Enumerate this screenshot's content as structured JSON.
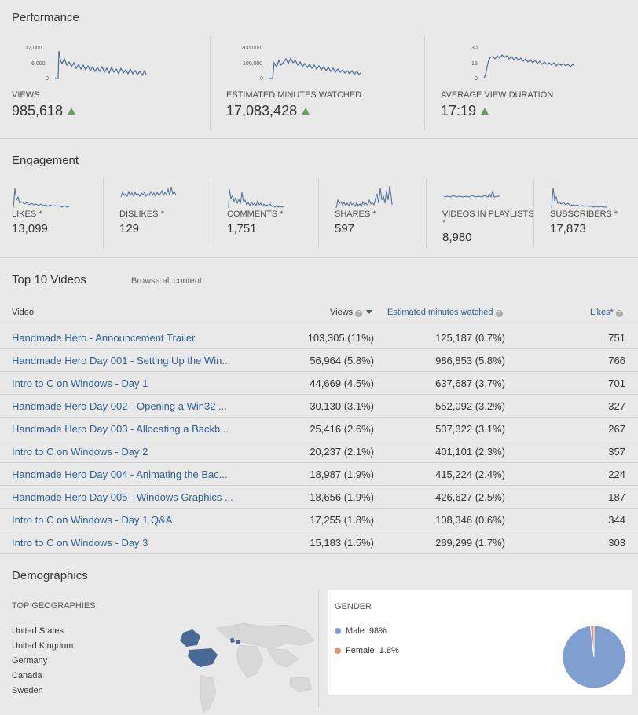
{
  "performance": {
    "title": "Performance",
    "metrics": [
      {
        "label": "VIEWS",
        "value": "985,618",
        "ticks": [
          "12,000",
          "6,000",
          "0"
        ]
      },
      {
        "label": "ESTIMATED MINUTES WATCHED",
        "value": "17,083,428",
        "ticks": [
          "200,000",
          "100,000",
          "0"
        ]
      },
      {
        "label": "AVERAGE VIEW DURATION",
        "value": "17:19",
        "ticks": [
          "30",
          "15",
          "0"
        ]
      }
    ],
    "trend_color": "#6a9c62"
  },
  "engagement": {
    "title": "Engagement",
    "metrics": [
      {
        "label": "LIKES *",
        "value": "13,099"
      },
      {
        "label": "DISLIKES *",
        "value": "129"
      },
      {
        "label": "COMMENTS *",
        "value": "1,751"
      },
      {
        "label": "SHARES *",
        "value": "597"
      },
      {
        "label": "VIDEOS IN PLAYLISTS",
        "label2": "*",
        "value": "8,980"
      },
      {
        "label": "SUBSCRIBERS *",
        "value": "17,873"
      }
    ]
  },
  "top_videos": {
    "title": "Top 10 Videos",
    "browse_link": "Browse all content",
    "columns": {
      "video": "Video",
      "views": "Views",
      "minutes": "Estimated minutes watched",
      "likes": "Likes*"
    },
    "rows": [
      {
        "title": "Handmade Hero - Announcement Trailer",
        "views": "103,305 (11%)",
        "minutes": "125,187 (0.7%)",
        "likes": "751"
      },
      {
        "title": "Handmade Hero Day 001 - Setting Up the Win...",
        "views": "56,964 (5.8%)",
        "minutes": "986,853 (5.8%)",
        "likes": "766"
      },
      {
        "title": "Intro to C on Windows - Day 1",
        "views": "44,669 (4.5%)",
        "minutes": "637,687 (3.7%)",
        "likes": "701"
      },
      {
        "title": "Handmade Hero Day 002 - Opening a Win32 ...",
        "views": "30,130 (3.1%)",
        "minutes": "552,092 (3.2%)",
        "likes": "327"
      },
      {
        "title": "Handmade Hero Day 003 - Allocating a Backb...",
        "views": "25,416 (2.6%)",
        "minutes": "537,322 (3.1%)",
        "likes": "267"
      },
      {
        "title": "Intro to C on Windows - Day 2",
        "views": "20,237 (2.1%)",
        "minutes": "401,101 (2.3%)",
        "likes": "357"
      },
      {
        "title": "Handmade Hero Day 004 - Animating the Bac...",
        "views": "18,987 (1.9%)",
        "minutes": "415,224 (2.4%)",
        "likes": "224"
      },
      {
        "title": "Handmade Hero Day 005 - Windows Graphics ...",
        "views": "18,656 (1.9%)",
        "minutes": "426,627 (2.5%)",
        "likes": "187"
      },
      {
        "title": "Intro to C on Windows - Day 1 Q&A",
        "views": "17,255 (1.8%)",
        "minutes": "108,346 (0.6%)",
        "likes": "344"
      },
      {
        "title": "Intro to C on Windows - Day 3",
        "views": "15,183 (1.5%)",
        "minutes": "289,299 (1.7%)",
        "likes": "303"
      }
    ]
  },
  "demographics": {
    "title": "Demographics",
    "geographies_label": "TOP GEOGRAPHIES",
    "geographies": [
      "United States",
      "United Kingdom",
      "Germany",
      "Canada",
      "Sweden"
    ],
    "gender_label": "GENDER",
    "gender": [
      {
        "name": "Male",
        "pct": "98%",
        "value": 98.2,
        "color": "#7f9fd0"
      },
      {
        "name": "Female",
        "pct": "1.8%",
        "value": 1.8,
        "color": "#e8926a"
      }
    ]
  }
}
